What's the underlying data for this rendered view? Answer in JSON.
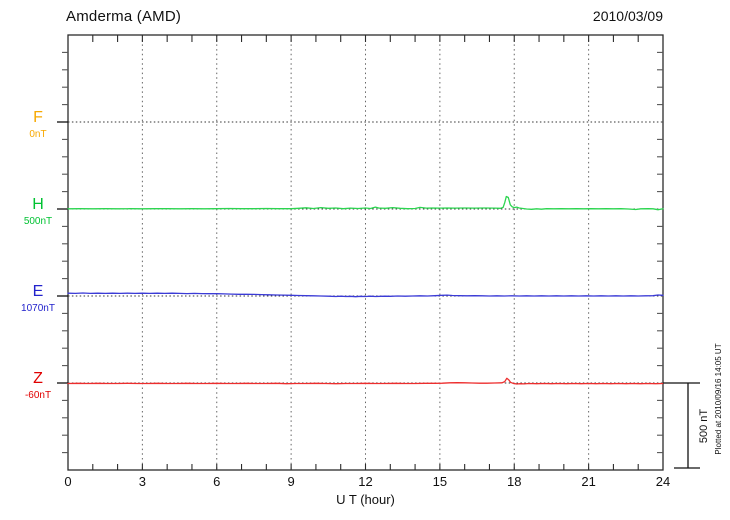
{
  "header": {
    "title": "Amderma (AMD)",
    "date": "2010/03/09"
  },
  "xaxis": {
    "label": "U T (hour)",
    "ticks": [
      "0",
      "3",
      "6",
      "9",
      "12",
      "15",
      "18",
      "21",
      "24"
    ]
  },
  "scalebar": {
    "label": "500 nT"
  },
  "footer_note": "Plotted at 2010/09/16 14:05 UT",
  "channels": [
    {
      "id": "F",
      "label": "F",
      "baseline_label": "0nT",
      "label_color": "#F7A800",
      "trace_color": "#F7A800"
    },
    {
      "id": "H",
      "label": "H",
      "baseline_label": "500nT",
      "label_color": "#00C232",
      "trace_color": "#2BD54F"
    },
    {
      "id": "E",
      "label": "E",
      "baseline_label": "1070nT",
      "label_color": "#2222CC",
      "trace_color": "#3B3BD6"
    },
    {
      "id": "Z",
      "label": "Z",
      "baseline_label": "-60nT",
      "label_color": "#E00000",
      "trace_color": "#ED2D2D"
    }
  ],
  "chart_data": {
    "type": "line",
    "title": "Amderma (AMD) magnetogram",
    "date": "2010/03/09",
    "xlabel": "U T (hour)",
    "x_range": [
      0,
      24
    ],
    "x_ticks": [
      0,
      3,
      6,
      9,
      12,
      15,
      18,
      21,
      24
    ],
    "grid": "dotted vertical lines every 3 hours; dotted horizontal baseline per channel",
    "scale": "500 nT per channel division (scale bar at lower right)",
    "legend_position": "left margin channel labels",
    "series": [
      {
        "name": "F",
        "baseline_nT": 0,
        "units": "nT",
        "note": "no visible trace (data gap); only dotted reference line shown",
        "points": []
      },
      {
        "name": "H",
        "baseline_nT": 500,
        "units": "nT",
        "note": "offsets in nT relative to 500 nT baseline; sharp positive spike ~17:40 UT",
        "points": [
          [
            0,
            1
          ],
          [
            0.5,
            2
          ],
          [
            1,
            1
          ],
          [
            1.5,
            2
          ],
          [
            2,
            1
          ],
          [
            2.5,
            2
          ],
          [
            3,
            1
          ],
          [
            3.5,
            2
          ],
          [
            4,
            2
          ],
          [
            4.5,
            1
          ],
          [
            5,
            2
          ],
          [
            5.5,
            1
          ],
          [
            6,
            2
          ],
          [
            6.5,
            3
          ],
          [
            7,
            2
          ],
          [
            7.5,
            2
          ],
          [
            8,
            3
          ],
          [
            8.5,
            2
          ],
          [
            9,
            2
          ],
          [
            9.3,
            4
          ],
          [
            9.6,
            7
          ],
          [
            9.9,
            3
          ],
          [
            10.2,
            8
          ],
          [
            10.5,
            4
          ],
          [
            10.8,
            6
          ],
          [
            11.1,
            2
          ],
          [
            11.4,
            5
          ],
          [
            11.7,
            3
          ],
          [
            12,
            6
          ],
          [
            12.2,
            3
          ],
          [
            12.4,
            11
          ],
          [
            12.55,
            5
          ],
          [
            12.8,
            4
          ],
          [
            13.1,
            8
          ],
          [
            13.4,
            4
          ],
          [
            13.7,
            2
          ],
          [
            14,
            3
          ],
          [
            14.2,
            9
          ],
          [
            14.45,
            5
          ],
          [
            14.7,
            6
          ],
          [
            15,
            5
          ],
          [
            15.3,
            6
          ],
          [
            15.6,
            5
          ],
          [
            16,
            6
          ],
          [
            16.4,
            5
          ],
          [
            16.8,
            6
          ],
          [
            17.2,
            5
          ],
          [
            17.45,
            4
          ],
          [
            17.55,
            9
          ],
          [
            17.62,
            38
          ],
          [
            17.68,
            72
          ],
          [
            17.76,
            66
          ],
          [
            17.84,
            24
          ],
          [
            17.92,
            12
          ],
          [
            18,
            8
          ],
          [
            18.1,
            11
          ],
          [
            18.2,
            6
          ],
          [
            18.35,
            3
          ],
          [
            18.5,
            0
          ],
          [
            18.7,
            -2
          ],
          [
            18.9,
            1
          ],
          [
            19.1,
            -1
          ],
          [
            19.3,
            2
          ],
          [
            19.6,
            1
          ],
          [
            19.9,
            2
          ],
          [
            20.2,
            1
          ],
          [
            20.5,
            2
          ],
          [
            20.8,
            1
          ],
          [
            21.1,
            2
          ],
          [
            21.4,
            1
          ],
          [
            21.7,
            2
          ],
          [
            22,
            1
          ],
          [
            22.3,
            2
          ],
          [
            22.6,
            0
          ],
          [
            22.9,
            -3
          ],
          [
            23.1,
            1
          ],
          [
            23.4,
            2
          ],
          [
            23.6,
            1
          ],
          [
            23.8,
            -4
          ],
          [
            24,
            2
          ]
        ]
      },
      {
        "name": "E",
        "baseline_nT": 1070,
        "units": "nT",
        "note": "starts ~16 nT above baseline, drifts down to baseline by ~10 UT",
        "points": [
          [
            0,
            16
          ],
          [
            0.3,
            15
          ],
          [
            0.6,
            17
          ],
          [
            0.9,
            15
          ],
          [
            1.2,
            16
          ],
          [
            1.5,
            15
          ],
          [
            1.8,
            16
          ],
          [
            2.1,
            15
          ],
          [
            2.4,
            16
          ],
          [
            2.7,
            15
          ],
          [
            3,
            16
          ],
          [
            3.3,
            15
          ],
          [
            3.6,
            16
          ],
          [
            3.9,
            15
          ],
          [
            4.2,
            16
          ],
          [
            4.5,
            15
          ],
          [
            4.8,
            14
          ],
          [
            5.1,
            15
          ],
          [
            5.4,
            14
          ],
          [
            5.7,
            13
          ],
          [
            6,
            13
          ],
          [
            6.3,
            12
          ],
          [
            6.6,
            11
          ],
          [
            6.9,
            10
          ],
          [
            7.2,
            10
          ],
          [
            7.5,
            9
          ],
          [
            7.8,
            8
          ],
          [
            8.1,
            7
          ],
          [
            8.4,
            6
          ],
          [
            8.7,
            5
          ],
          [
            9,
            4
          ],
          [
            9.3,
            3
          ],
          [
            9.6,
            2
          ],
          [
            9.9,
            1
          ],
          [
            10.2,
            0
          ],
          [
            10.5,
            -1
          ],
          [
            10.8,
            -3
          ],
          [
            11,
            -1
          ],
          [
            11.2,
            -3
          ],
          [
            11.4,
            -2
          ],
          [
            11.6,
            -4
          ],
          [
            11.8,
            -2
          ],
          [
            12,
            -3
          ],
          [
            12.2,
            -1
          ],
          [
            12.4,
            -3
          ],
          [
            12.6,
            -2
          ],
          [
            12.8,
            -1
          ],
          [
            13,
            -2
          ],
          [
            13.3,
            0
          ],
          [
            13.6,
            -1
          ],
          [
            13.9,
            0
          ],
          [
            14.2,
            1
          ],
          [
            14.5,
            0
          ],
          [
            14.8,
            2
          ],
          [
            15.1,
            4
          ],
          [
            15.3,
            5
          ],
          [
            15.5,
            3
          ],
          [
            15.8,
            2
          ],
          [
            16.1,
            1
          ],
          [
            16.4,
            2
          ],
          [
            16.7,
            1
          ],
          [
            17,
            0
          ],
          [
            17.3,
            1
          ],
          [
            17.6,
            0
          ],
          [
            17.9,
            1
          ],
          [
            18.2,
            0
          ],
          [
            18.5,
            1
          ],
          [
            18.8,
            0
          ],
          [
            19.1,
            1
          ],
          [
            19.4,
            0
          ],
          [
            19.7,
            1
          ],
          [
            20,
            0
          ],
          [
            20.3,
            1
          ],
          [
            20.6,
            0
          ],
          [
            20.9,
            1
          ],
          [
            21.2,
            0
          ],
          [
            21.5,
            1
          ],
          [
            21.8,
            0
          ],
          [
            22.1,
            1
          ],
          [
            22.4,
            0
          ],
          [
            22.7,
            1
          ],
          [
            23,
            0
          ],
          [
            23.3,
            1
          ],
          [
            23.6,
            2
          ],
          [
            23.8,
            6
          ],
          [
            24,
            4
          ]
        ]
      },
      {
        "name": "Z",
        "baseline_nT": -60,
        "units": "nT",
        "note": "hugs just below dotted baseline; small positive spike ~17:42 UT",
        "points": [
          [
            0,
            -3
          ],
          [
            0.4,
            -2
          ],
          [
            0.8,
            -3
          ],
          [
            1.2,
            -2
          ],
          [
            1.6,
            -3
          ],
          [
            2,
            -3
          ],
          [
            2.4,
            -2
          ],
          [
            2.8,
            -3
          ],
          [
            3.2,
            -3
          ],
          [
            3.6,
            -2
          ],
          [
            4,
            -3
          ],
          [
            4.4,
            -3
          ],
          [
            4.8,
            -2
          ],
          [
            5.2,
            -3
          ],
          [
            5.6,
            -3
          ],
          [
            6,
            -2
          ],
          [
            6.4,
            -3
          ],
          [
            6.8,
            -3
          ],
          [
            7.2,
            -2
          ],
          [
            7.6,
            -3
          ],
          [
            8,
            -3
          ],
          [
            8.4,
            -2
          ],
          [
            8.8,
            -4
          ],
          [
            9.2,
            -3
          ],
          [
            9.6,
            -3
          ],
          [
            10,
            -2
          ],
          [
            10.4,
            -3
          ],
          [
            10.8,
            -4
          ],
          [
            11.2,
            -3
          ],
          [
            11.6,
            -3
          ],
          [
            12,
            -2
          ],
          [
            12.4,
            -3
          ],
          [
            12.8,
            -3
          ],
          [
            13.2,
            -2
          ],
          [
            13.6,
            -3
          ],
          [
            14,
            -3
          ],
          [
            14.4,
            -2
          ],
          [
            14.8,
            -2
          ],
          [
            15.1,
            -1
          ],
          [
            15.4,
            1
          ],
          [
            15.7,
            2
          ],
          [
            16,
            1
          ],
          [
            16.3,
            0
          ],
          [
            16.6,
            -1
          ],
          [
            16.9,
            -1
          ],
          [
            17.2,
            0
          ],
          [
            17.5,
            1
          ],
          [
            17.62,
            8
          ],
          [
            17.7,
            27
          ],
          [
            17.78,
            18
          ],
          [
            17.85,
            4
          ],
          [
            17.95,
            -2
          ],
          [
            18.1,
            -6
          ],
          [
            18.25,
            -4
          ],
          [
            18.4,
            -5
          ],
          [
            18.6,
            -3
          ],
          [
            18.9,
            -4
          ],
          [
            19.2,
            -3
          ],
          [
            19.5,
            -4
          ],
          [
            19.8,
            -3
          ],
          [
            20.1,
            -4
          ],
          [
            20.4,
            -3
          ],
          [
            20.7,
            -4
          ],
          [
            21,
            -3
          ],
          [
            21.3,
            -4
          ],
          [
            21.6,
            -3
          ],
          [
            21.9,
            -4
          ],
          [
            22.2,
            -3
          ],
          [
            22.5,
            -4
          ],
          [
            22.8,
            -3
          ],
          [
            23.1,
            -4
          ],
          [
            23.4,
            -3
          ],
          [
            23.7,
            -4
          ],
          [
            24,
            -3
          ]
        ]
      }
    ]
  }
}
